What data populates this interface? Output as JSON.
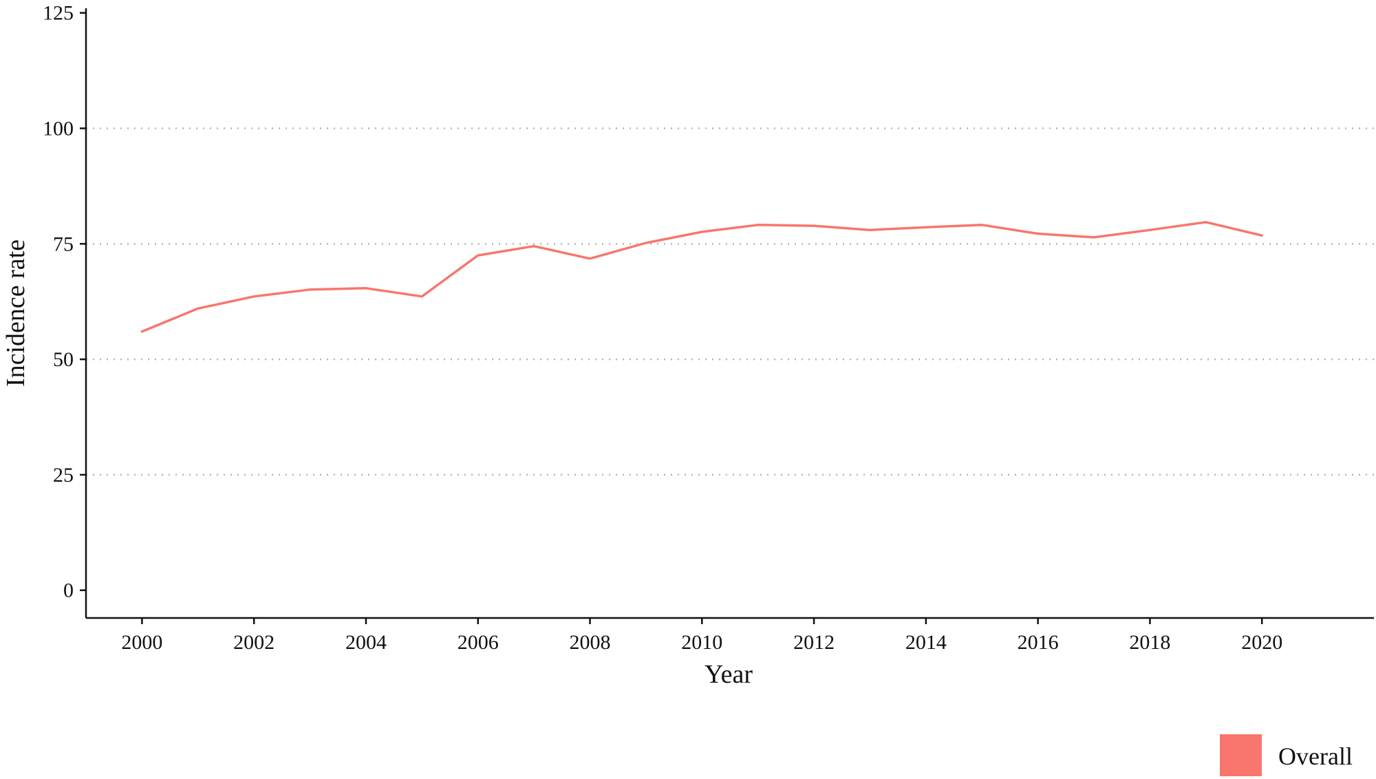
{
  "chart_data": {
    "type": "line",
    "xlabel": "Year",
    "ylabel": "Incidence rate",
    "xlim": [
      1999,
      2022
    ],
    "ylim": [
      -6,
      126
    ],
    "x_ticks": [
      2000,
      2002,
      2004,
      2006,
      2008,
      2010,
      2012,
      2014,
      2016,
      2018,
      2020
    ],
    "y_ticks": [
      0,
      25,
      50,
      75,
      100,
      125
    ],
    "grid": "horizontal dotted",
    "legend": "bottom-right",
    "series": [
      {
        "name": "Overall",
        "color": "#F8766D",
        "x": [
          2000,
          2001,
          2002,
          2003,
          2004,
          2005,
          2006,
          2007,
          2008,
          2009,
          2010,
          2011,
          2012,
          2013,
          2014,
          2015,
          2016,
          2017,
          2018,
          2019,
          2020
        ],
        "values": [
          56.0,
          61.0,
          63.6,
          65.1,
          65.4,
          63.6,
          72.5,
          74.5,
          71.8,
          75.2,
          77.6,
          79.1,
          78.9,
          78.0,
          78.6,
          79.1,
          77.2,
          76.4,
          78.0,
          79.7,
          76.8
        ]
      }
    ]
  }
}
